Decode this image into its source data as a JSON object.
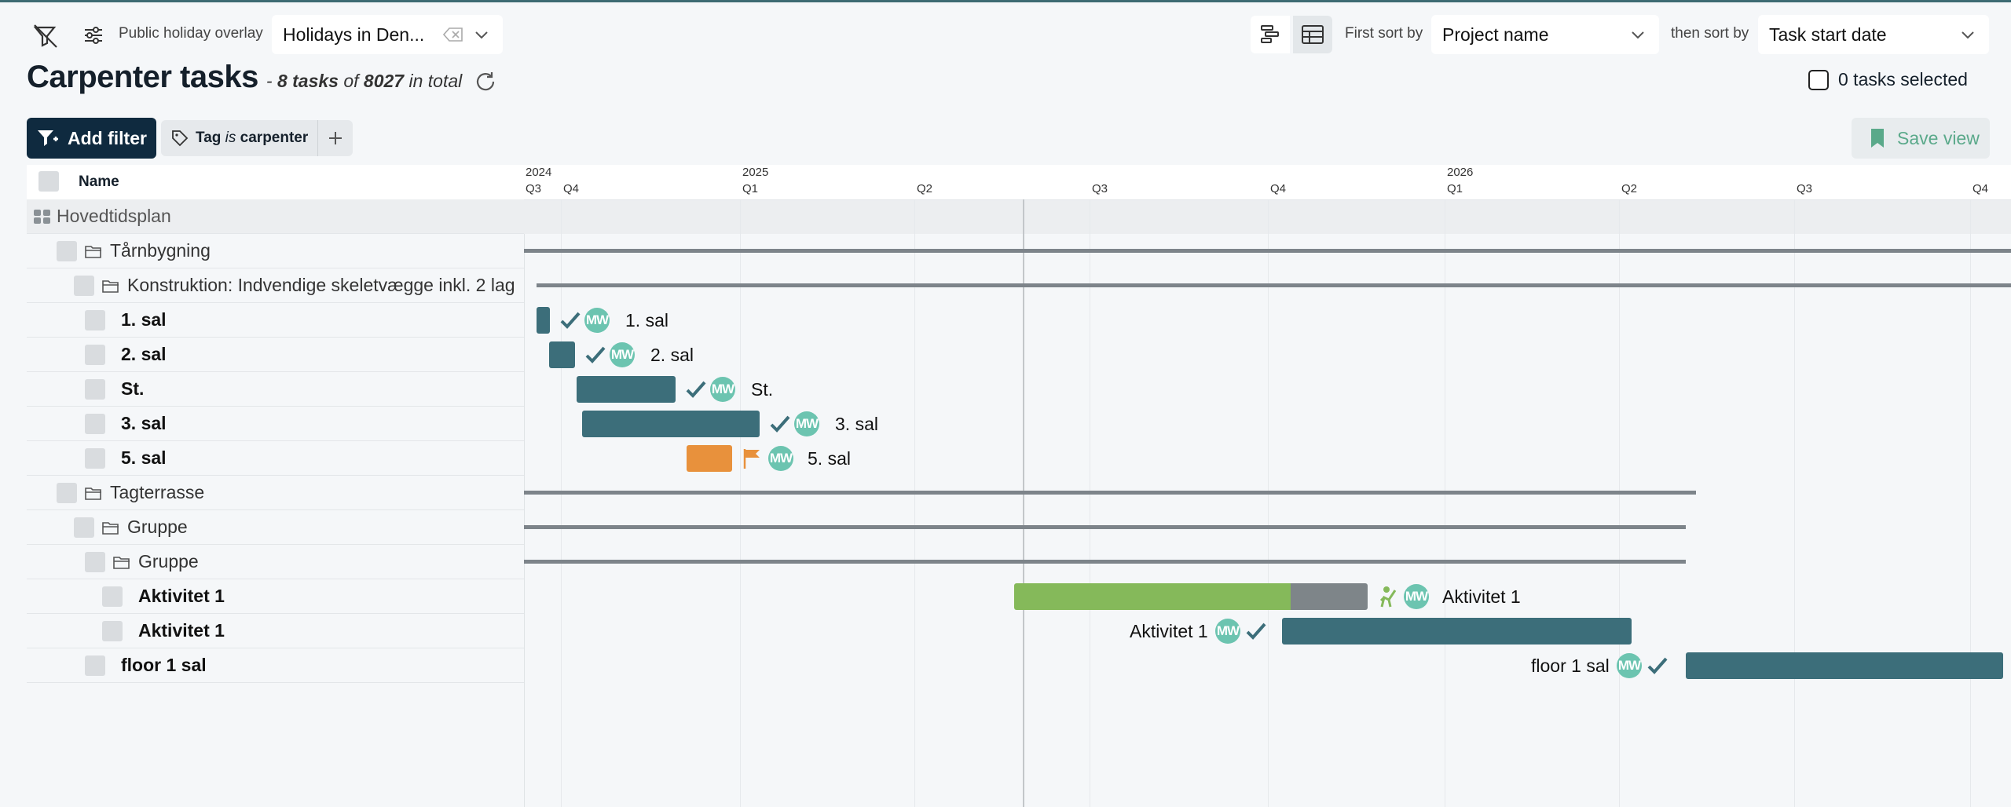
{
  "toolbar": {
    "holiday_label": "Public holiday overlay",
    "holiday_value": "Holidays in Den...",
    "sort_first_label": "First sort by",
    "sort_first_value": "Project name",
    "sort_then_label": "then sort by",
    "sort_then_value": "Task start date"
  },
  "header": {
    "title": "Carpenter tasks",
    "dash": "- ",
    "task_count": "8 tasks",
    "of": " of ",
    "total": "8027",
    "in_total": " in total",
    "selected": "0 tasks selected"
  },
  "filters": {
    "add_filter": "Add filter",
    "tag_prefix": "Tag ",
    "tag_is": "is",
    "tag_value": " carpenter",
    "save_view": "Save view"
  },
  "table": {
    "name_header": "Name",
    "rows": [
      {
        "label": "Hovedtidsplan",
        "kind": "project"
      },
      {
        "label": "Tårnbygning",
        "kind": "folder"
      },
      {
        "label": "Konstruktion: Indvendige skeletvægge inkl. 2 lag",
        "kind": "folder"
      },
      {
        "label": "1. sal",
        "kind": "task"
      },
      {
        "label": "2. sal",
        "kind": "task"
      },
      {
        "label": "St.",
        "kind": "task"
      },
      {
        "label": "3. sal",
        "kind": "task"
      },
      {
        "label": "5. sal",
        "kind": "task"
      },
      {
        "label": "Tagterrasse",
        "kind": "folder"
      },
      {
        "label": "Gruppe",
        "kind": "folder"
      },
      {
        "label": "Gruppe",
        "kind": "folder"
      },
      {
        "label": "Aktivitet 1",
        "kind": "task"
      },
      {
        "label": "Aktivitet 1",
        "kind": "task"
      },
      {
        "label": "floor 1 sal",
        "kind": "task"
      }
    ]
  },
  "timeline": {
    "years": [
      "2024",
      "2025",
      "2026"
    ],
    "quarters": [
      "Q3",
      "Q4",
      "Q1",
      "Q2",
      "Q3",
      "Q4",
      "Q1",
      "Q2",
      "Q3",
      "Q4"
    ],
    "avatar_initials": "MW",
    "bar_labels": [
      "1. sal",
      "2. sal",
      "St.",
      "3. sal",
      "5. sal",
      "Aktivitet 1",
      "Aktivitet 1",
      "floor 1 sal"
    ]
  },
  "colors": {
    "bar_done": "#3c6e7a",
    "bar_late": "#e8913c",
    "bar_progress": "#85b95a",
    "bar_remaining": "#7e8589",
    "avatar": "#6cc4b0",
    "primary": "#0f2a3f"
  }
}
